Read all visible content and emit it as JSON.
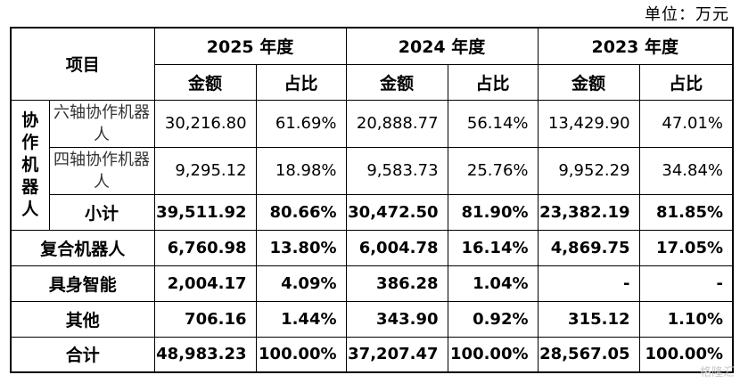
{
  "unit_label": "单位：万元",
  "header": {
    "item": "项目",
    "years": [
      "2025 年度",
      "2024 年度",
      "2023 年度"
    ],
    "amount": "金额",
    "share": "占比"
  },
  "group": {
    "label_chars": [
      "协",
      "作",
      "机",
      "器",
      "人"
    ],
    "rows": [
      {
        "label": "六轴协作机器人",
        "values": [
          "30,216.80",
          "61.69%",
          "20,888.77",
          "56.14%",
          "13,429.90",
          "47.01%"
        ]
      },
      {
        "label": "四轴协作机器人",
        "values": [
          "9,295.12",
          "18.98%",
          "9,583.73",
          "25.76%",
          "9,952.29",
          "34.84%"
        ]
      }
    ],
    "subtotal": {
      "label": "小计",
      "values": [
        "39,511.92",
        "80.66%",
        "30,472.50",
        "81.90%",
        "23,382.19",
        "81.85%"
      ]
    }
  },
  "rows": [
    {
      "label": "复合机器人",
      "values": [
        "6,760.98",
        "13.80%",
        "6,004.78",
        "16.14%",
        "4,869.75",
        "17.05%"
      ]
    },
    {
      "label": "具身智能",
      "values": [
        "2,004.17",
        "4.09%",
        "386.28",
        "1.04%",
        "-",
        "-"
      ]
    },
    {
      "label": "其他",
      "values": [
        "706.16",
        "1.44%",
        "343.90",
        "0.92%",
        "315.12",
        "1.10%"
      ]
    },
    {
      "label": "合计",
      "values": [
        "48,983.23",
        "100.00%",
        "37,207.47",
        "100.00%",
        "28,567.05",
        "100.00%"
      ]
    }
  ],
  "watermark": "格隆汇"
}
